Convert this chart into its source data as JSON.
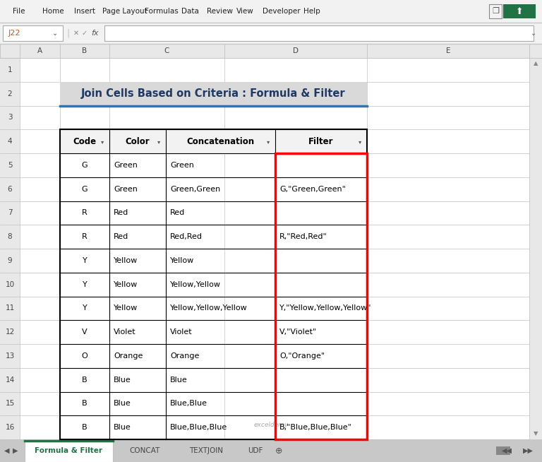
{
  "title": "Join Cells Based on Criteria : Formula & Filter",
  "title_color": "#1F3864",
  "title_bg": "#D9D9D9",
  "headers": [
    "Code",
    "Color",
    "Concatenation",
    "Filter"
  ],
  "rows": [
    [
      "G",
      "Green",
      "Green",
      ""
    ],
    [
      "G",
      "Green",
      "Green,Green",
      "G,\"Green,Green\""
    ],
    [
      "R",
      "Red",
      "Red",
      ""
    ],
    [
      "R",
      "Red",
      "Red,Red",
      "R,\"Red,Red\""
    ],
    [
      "Y",
      "Yellow",
      "Yellow",
      ""
    ],
    [
      "Y",
      "Yellow",
      "Yellow,Yellow",
      ""
    ],
    [
      "Y",
      "Yellow",
      "Yellow,Yellow,Yellow",
      "Y,\"Yellow,Yellow,Yellow\""
    ],
    [
      "V",
      "Violet",
      "Violet",
      "V,\"Violet\""
    ],
    [
      "O",
      "Orange",
      "Orange",
      "O,\"Orange\""
    ],
    [
      "B",
      "Blue",
      "Blue",
      ""
    ],
    [
      "B",
      "Blue",
      "Blue,Blue",
      ""
    ],
    [
      "B",
      "Blue",
      "Blue,Blue,Blue",
      "B,\"Blue,Blue,Blue\""
    ]
  ],
  "filter_col_border_color": "#FF0000",
  "tab_labels": [
    "Formula & Filter",
    "CONCAT",
    "TEXTJOIN",
    "UDF"
  ],
  "active_tab_text_color": "#217346",
  "formula_bar_text": "J22",
  "menu_items": [
    "File",
    "Home",
    "Insert",
    "Page Layout",
    "Formulas",
    "Data",
    "Review",
    "View",
    "Developer",
    "Help"
  ],
  "ribbon_bg": "#F2F2F2",
  "sheet_bg": "#FFFFFF",
  "header_col_bg": "#E8E8E8",
  "tab_bar_bg": "#C8C8C8",
  "title_underline_color": "#2E75B6",
  "grid_color": "#C0C0C0",
  "table_border_color": "#000000",
  "scrollbar_bg": "#E8E8E8"
}
